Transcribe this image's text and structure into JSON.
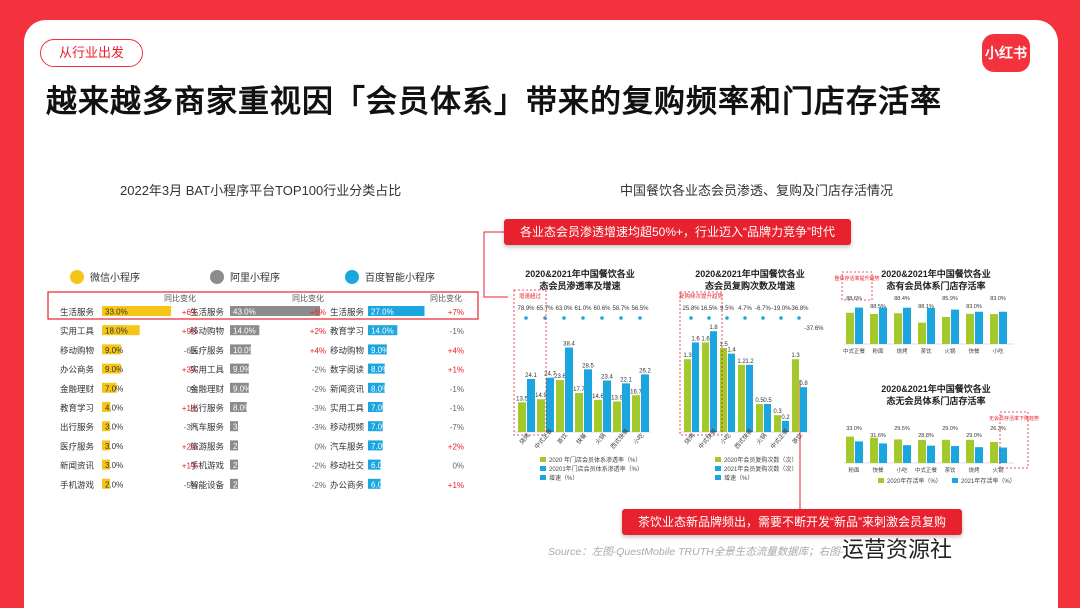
{
  "header": {
    "tag": "从行业出发",
    "logo": "小红书",
    "title": "越来越多商家重视因「会员体系」带来的复购频率和门店存活率"
  },
  "left_panel": {
    "subtitle": "2022年3月 BAT小程序平台TOP100行业分类占比",
    "platforms": [
      "微信小程序",
      "阿里小程序",
      "百度智能小程序"
    ],
    "change_label": "同比变化"
  },
  "right_panel": {
    "subtitle": "中国餐饮各业态会员渗透、复购及门店存活情况",
    "callout_top": "各业态会员渗透增速均超50%+，行业迈入“品牌力竞争”时代",
    "callout_bottom": "茶饮业态新品牌频出，需要不断开发“新品”来刺激会员复购"
  },
  "source": "Source：左图-QuestMobile TRUTH全景生态流量数据库；右图-",
  "brand": "运营资源社",
  "colors": {
    "accent": "#e8212e",
    "wechat": "#f5c518",
    "ali": "#8c8c8c",
    "baidu": "#1ba6e0",
    "green": "#a3c92a",
    "blue": "#1ba6e0"
  },
  "chart_data": [
    {
      "type": "bar",
      "title": "2022年3月 BAT小程序平台TOP100行业分类占比",
      "series": [
        {
          "name": "微信小程序",
          "categories": [
            "生活服务",
            "实用工具",
            "移动购物",
            "办公商务",
            "金融理财",
            "教育学习",
            "出行服务",
            "医疗服务",
            "新闻资讯",
            "手机游戏"
          ],
          "values": [
            33.0,
            18.0,
            9.0,
            9.0,
            7.0,
            4.0,
            3.0,
            3.0,
            3.0,
            2.0
          ],
          "labels": [
            "33.0%",
            "18.0%",
            "9.0%",
            "9.0%",
            "7.0%",
            "4.0%",
            "3.0%",
            "3.0%",
            "3.0%",
            "2.0%"
          ],
          "changes": [
            "+6%",
            "+9%",
            "-6%",
            "+3%",
            "0%",
            "+1%",
            "-3%",
            "+2%",
            "+1%",
            "-5%"
          ]
        },
        {
          "name": "阿里小程序",
          "categories": [
            "生活服务",
            "移动购物",
            "医疗服务",
            "实用工具",
            "金融理财",
            "出行服务",
            "汽车服务",
            "旅游服务",
            "手机游戏",
            "智能设备"
          ],
          "values": [
            43.0,
            14.0,
            10.0,
            9.0,
            9.0,
            8.0,
            3.0,
            2.0,
            2.0,
            2.0
          ],
          "labels": [
            "43.0%",
            "14.0%",
            "10.0%",
            "9.0%",
            "9.0%",
            "8.0%",
            "3.0%",
            "2.0%",
            "2.0%",
            "2.0%"
          ],
          "changes": [
            "+6%",
            "+2%",
            "+4%",
            "-2%",
            "-2%",
            "-3%",
            "-3%",
            "0%",
            "-2%",
            "-2%"
          ]
        },
        {
          "name": "百度智能小程序",
          "categories": [
            "生活服务",
            "教育学习",
            "移动购物",
            "数字阅读",
            "新闻资讯",
            "实用工具",
            "移动视频",
            "汽车服务",
            "移动社交",
            "办公商务"
          ],
          "values": [
            27.0,
            14.0,
            9.0,
            8.0,
            8.0,
            7.0,
            7.0,
            7.0,
            6.0,
            6.0
          ],
          "labels": [
            "27.0%",
            "14.0%",
            "9.0%",
            "8.0%",
            "8.0%",
            "7.0%",
            "7.0%",
            "7.0%",
            "6.0%",
            "6.0%"
          ],
          "changes": [
            "+7%",
            "-1%",
            "+4%",
            "+1%",
            "-1%",
            "-1%",
            "-7%",
            "+2%",
            "0%",
            "+1%"
          ]
        }
      ]
    },
    {
      "type": "bar",
      "title": "2020&2021年中国餐饮各业态会员渗透率及增速",
      "categories": [
        "烧烤",
        "中式正餐",
        "茶饮",
        "快餐",
        "火锅",
        "西式快餐",
        "小吃"
      ],
      "series": [
        {
          "name": "2020 年门店会员体系渗透率（%）",
          "values": [
            13.5,
            14.9,
            23.6,
            17.7,
            14.6,
            13.9,
            16.7
          ]
        },
        {
          "name": "20201年门店会员体系渗透率（%）",
          "values": [
            24.1,
            24.7,
            38.4,
            28.5,
            23.4,
            22.1,
            26.2
          ]
        },
        {
          "name": "增速（%）",
          "values": [
            78.9,
            65.7,
            63.0,
            61.0,
            60.6,
            58.7,
            56.5
          ]
        }
      ],
      "annotation": "增速超过"
    },
    {
      "type": "bar",
      "title": "2020&2021年中国餐饮各业态会员复购次数及增速",
      "categories": [
        "烧烤",
        "中式快餐",
        "小吃",
        "西式快餐",
        "火锅",
        "中式正餐",
        "茶饮"
      ],
      "series": [
        {
          "name": "2020年会员复购次数（次）",
          "values": [
            1.3,
            1.6,
            1.5,
            1.2,
            0.5,
            0.3,
            1.3
          ]
        },
        {
          "name": "2021年会员复购次数（次）",
          "values": [
            1.6,
            1.8,
            1.4,
            1.2,
            0.5,
            0.2,
            0.8
          ]
        },
        {
          "name": "增速（%）",
          "values": [
            25.8,
            16.5,
            9.5,
            4.7,
            -6.7,
            -19.0,
            -36.8
          ]
        }
      ],
      "extra_growth_label": "-37.6%",
      "annotation": "复购频次提升趋势"
    },
    {
      "type": "bar",
      "title": "2020&2021年中国餐饮各业态有会员体系门店存活率",
      "categories": [
        "中式正餐",
        "粉面",
        "烧烤",
        "茶饮",
        "火锅",
        "快餐",
        "小吃"
      ],
      "series": [
        {
          "name": "2020",
          "values": [
            81.7,
            80.0,
            81.0,
            68.4,
            76.0,
            80.2,
            79.9
          ]
        },
        {
          "name": "2021",
          "values": [
            88.6,
            88.5,
            88.4,
            88.1,
            85.9,
            83.0,
            83.0
          ]
        }
      ],
      "annotation": "整体存活率提升趋势"
    },
    {
      "type": "bar",
      "title": "2020&2021年中国餐饮各业态无会员体系门店存活率",
      "categories": [
        "粉面",
        "快餐",
        "小吃",
        "中式正餐",
        "茶饮",
        "烧烤",
        "火锅"
      ],
      "series": [
        {
          "name": "2020年存活率（%）",
          "values": [
            33.0,
            31.6,
            29.5,
            28.8,
            29.0,
            29.0,
            26.3
          ]
        },
        {
          "name": "2021年存活率（%）",
          "values": [
            27.0,
            24.5,
            22.3,
            21.7,
            21.2,
            19.8,
            19.3
          ]
        }
      ],
      "annotation": "无会员存活率下降趋势"
    }
  ]
}
